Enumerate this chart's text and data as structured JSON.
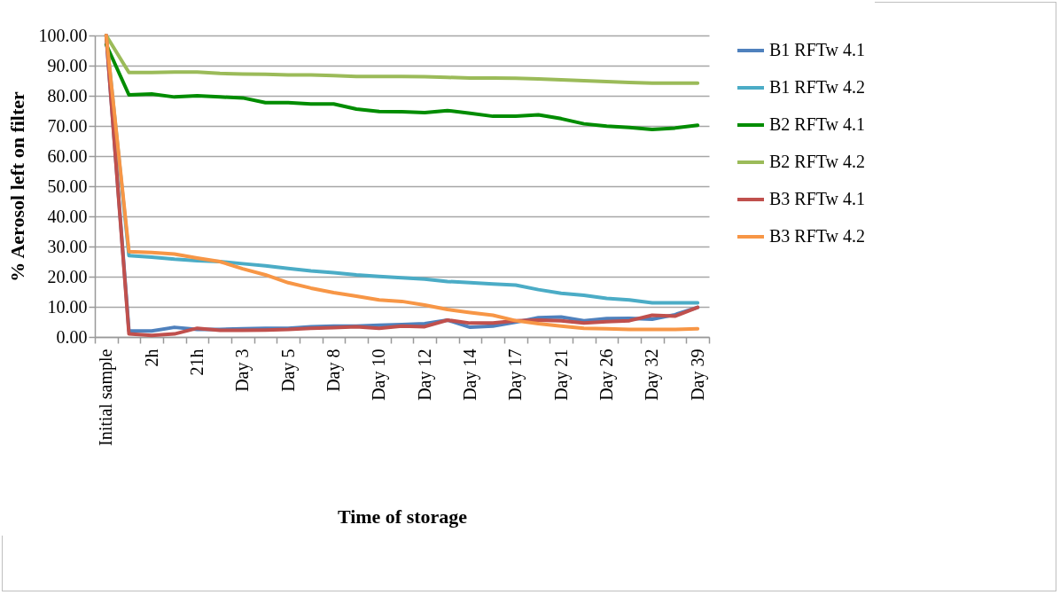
{
  "chart_data": {
    "type": "line",
    "xlabel": "Time of storage",
    "ylabel": "% Aerosol left on filter",
    "categories": [
      "Initial sample",
      null,
      "2h",
      null,
      "21h",
      null,
      "Day 3",
      null,
      "Day 5",
      null,
      "Day 8",
      null,
      "Day 10",
      null,
      "Day 12",
      null,
      "Day 14",
      null,
      "Day 17",
      null,
      "Day 21",
      null,
      "Day 26",
      null,
      "Day 32",
      null,
      "Day 39"
    ],
    "series": [
      {
        "name": "B1 RFTw 4.1",
        "color": "#4f81bd",
        "values": [
          100,
          2.0,
          2.0,
          3.2,
          2.5,
          2.5,
          2.7,
          2.9,
          2.9,
          3.4,
          3.6,
          3.6,
          3.9,
          4.1,
          4.4,
          5.6,
          3.2,
          3.6,
          4.9,
          6.4,
          6.6,
          5.4,
          6.1,
          6.2,
          5.9,
          7.4,
          9.8
        ]
      },
      {
        "name": "B1 RFTw 4.2",
        "color": "#4bacc6",
        "values": [
          100,
          27.0,
          26.5,
          25.8,
          25.3,
          25.0,
          24.3,
          23.6,
          22.7,
          21.9,
          21.3,
          20.6,
          20.1,
          19.6,
          19.2,
          18.4,
          18.0,
          17.6,
          17.2,
          15.7,
          14.5,
          13.8,
          12.8,
          12.3,
          11.3,
          11.3,
          11.3
        ]
      },
      {
        "name": "B2 RFTw 4.1",
        "color": "#008c00",
        "values": [
          97,
          80.3,
          80.6,
          79.6,
          80.0,
          79.6,
          79.3,
          77.7,
          77.7,
          77.3,
          77.3,
          75.6,
          74.8,
          74.7,
          74.4,
          75.1,
          74.2,
          73.2,
          73.2,
          73.7,
          72.4,
          70.7,
          69.9,
          69.5,
          68.8,
          69.3,
          70.2
        ]
      },
      {
        "name": "B2 RFTw 4.2",
        "color": "#9bbb59",
        "values": [
          100,
          87.7,
          87.7,
          87.9,
          87.9,
          87.4,
          87.2,
          87.1,
          86.9,
          86.9,
          86.7,
          86.4,
          86.4,
          86.4,
          86.3,
          86.1,
          85.9,
          85.9,
          85.8,
          85.6,
          85.3,
          85.0,
          84.7,
          84.4,
          84.2,
          84.2,
          84.2
        ]
      },
      {
        "name": "B3 RFTw 4.1",
        "color": "#c0504d",
        "values": [
          100,
          1.0,
          0.5,
          1.0,
          2.9,
          2.2,
          2.2,
          2.3,
          2.5,
          2.9,
          3.1,
          3.4,
          2.9,
          3.6,
          3.4,
          5.6,
          4.6,
          4.6,
          5.4,
          5.6,
          5.4,
          4.6,
          5.1,
          5.4,
          7.2,
          6.9,
          9.8
        ]
      },
      {
        "name": "B3 RFTw 4.2",
        "color": "#f79646",
        "values": [
          100,
          28.3,
          28.0,
          27.5,
          26.2,
          25.0,
          22.6,
          20.6,
          18.0,
          16.2,
          14.7,
          13.5,
          12.3,
          11.8,
          10.6,
          9.1,
          8.1,
          7.2,
          5.4,
          4.4,
          3.6,
          2.9,
          2.7,
          2.5,
          2.5,
          2.5,
          2.7
        ]
      }
    ],
    "ylim": [
      0,
      100
    ],
    "yticks": [
      {
        "value": 0,
        "label": "0.00"
      },
      {
        "value": 10,
        "label": "10.00"
      },
      {
        "value": 20,
        "label": "20.00"
      },
      {
        "value": 30,
        "label": "30.00"
      },
      {
        "value": 40,
        "label": "40.00"
      },
      {
        "value": 50,
        "label": "50.00"
      },
      {
        "value": 60,
        "label": "60.00"
      },
      {
        "value": 70,
        "label": "70.00"
      },
      {
        "value": 80,
        "label": "80.00"
      },
      {
        "value": 90,
        "label": "90.00"
      },
      {
        "value": 100,
        "label": "100.00"
      }
    ],
    "grid": "y",
    "legend": "right",
    "marker": "none",
    "line_style": "solid"
  }
}
